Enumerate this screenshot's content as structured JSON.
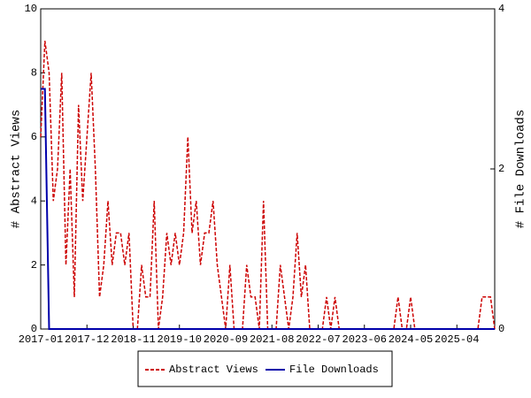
{
  "chart_data": {
    "type": "line",
    "y_label": "# Abstract Views",
    "y2_label": "# File Downloads",
    "categories": [
      "2017-01",
      null,
      null,
      null,
      null,
      null,
      null,
      null,
      null,
      null,
      null,
      "2017-12",
      null,
      null,
      null,
      null,
      null,
      null,
      null,
      null,
      null,
      null,
      "2018-11",
      null,
      null,
      null,
      null,
      null,
      null,
      null,
      null,
      null,
      null,
      "2019-10",
      null,
      null,
      null,
      null,
      null,
      null,
      null,
      null,
      null,
      null,
      "2020-09",
      null,
      null,
      null,
      null,
      null,
      null,
      null,
      null,
      null,
      null,
      "2021-08",
      null,
      null,
      null,
      null,
      null,
      null,
      null,
      null,
      null,
      null,
      "2022-07",
      null,
      null,
      null,
      null,
      null,
      null,
      null,
      null,
      null,
      null,
      "2023-06",
      null,
      null,
      null,
      null,
      null,
      null,
      null,
      null,
      null,
      null,
      "2024-05",
      null,
      null,
      null,
      null,
      null,
      null,
      null,
      null,
      null,
      null,
      "2025-04",
      null,
      null,
      null,
      null,
      null,
      null,
      null,
      null,
      null
    ],
    "series": [
      {
        "name": "Abstract Views",
        "color": "#cc0000",
        "dash": true,
        "axis": "y",
        "values": [
          6,
          9,
          8,
          4,
          5,
          8,
          2,
          5,
          1,
          7,
          4,
          6,
          8,
          5,
          1,
          2,
          4,
          2,
          3,
          3,
          2,
          3,
          0,
          0,
          2,
          1,
          1,
          4,
          0,
          1,
          3,
          2,
          3,
          2,
          3,
          6,
          3,
          4,
          2,
          3,
          3,
          4,
          2,
          1,
          0,
          2,
          0,
          0,
          0,
          2,
          1,
          1,
          0,
          4,
          0,
          0,
          0,
          2,
          1,
          0,
          1,
          3,
          1,
          2,
          0,
          0,
          0,
          0,
          1,
          0,
          1,
          0,
          0,
          0,
          0,
          0,
          0,
          0,
          0,
          0,
          0,
          0,
          0,
          0,
          0,
          1,
          0,
          0,
          1,
          0,
          0,
          0,
          0,
          0,
          0,
          0,
          0,
          0,
          0,
          0,
          0,
          0,
          0,
          0,
          0,
          1,
          1,
          1,
          0
        ]
      },
      {
        "name": "File Downloads",
        "color": "#0000aa",
        "dash": false,
        "axis": "y2",
        "values": [
          3,
          3,
          0,
          0,
          0,
          0,
          0,
          0,
          0,
          0,
          0,
          0,
          0,
          0,
          0,
          0,
          0,
          0,
          0,
          0,
          0,
          0,
          0,
          0,
          0,
          0,
          0,
          0,
          0,
          0,
          0,
          0,
          0,
          0,
          0,
          0,
          0,
          0,
          0,
          0,
          0,
          0,
          0,
          0,
          0,
          0,
          0,
          0,
          0,
          0,
          0,
          0,
          0,
          0,
          0,
          0,
          0,
          0,
          0,
          0,
          0,
          0,
          0,
          0,
          0,
          0,
          0,
          0,
          0,
          0,
          0,
          0,
          0,
          0,
          0,
          0,
          0,
          0,
          0,
          0,
          0,
          0,
          0,
          0,
          0,
          0,
          0,
          0,
          0,
          0,
          0,
          0,
          0,
          0,
          0,
          0,
          0,
          0,
          0,
          0,
          0,
          0,
          0,
          0,
          0,
          0,
          0,
          0,
          0
        ]
      }
    ],
    "ylim": [
      0,
      10
    ],
    "yticks": [
      0,
      2,
      4,
      6,
      8,
      10
    ],
    "y2lim": [
      0,
      4
    ],
    "y2ticks": [
      0,
      2,
      4
    ]
  }
}
